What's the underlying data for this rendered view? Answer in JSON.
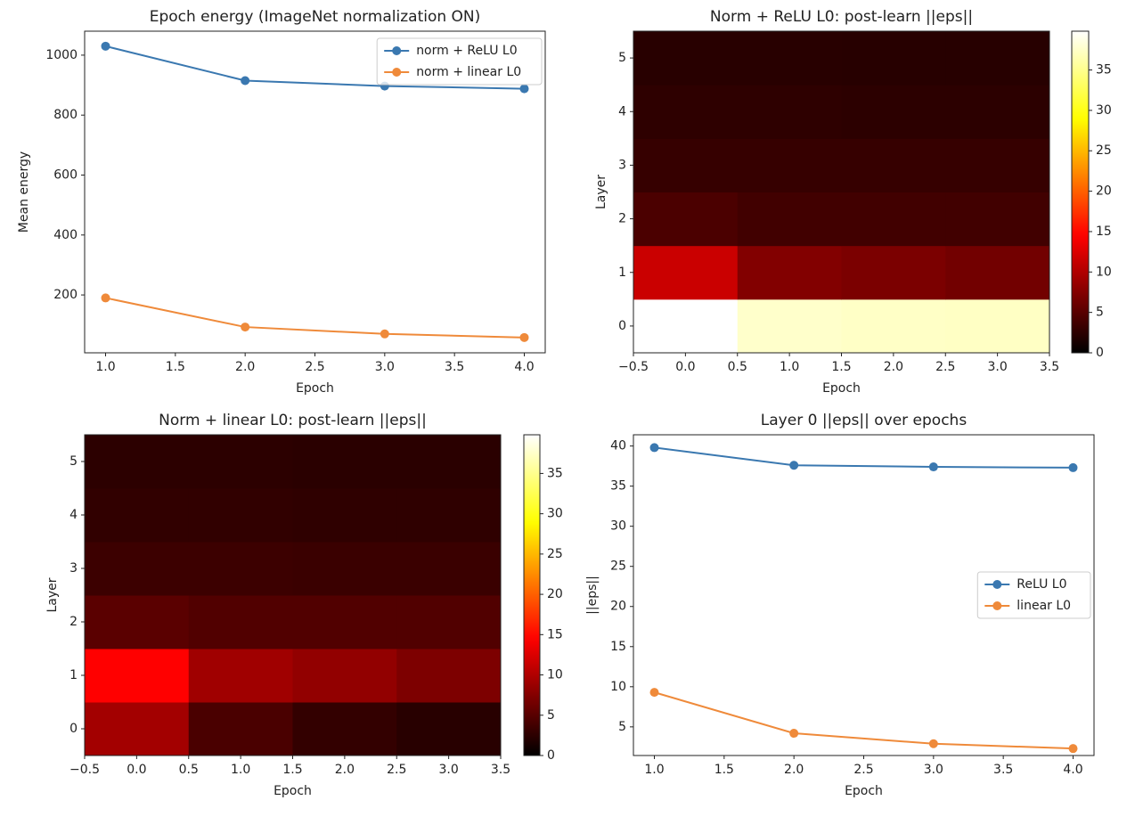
{
  "chart_data": [
    {
      "type": "line",
      "title": "Epoch energy (ImageNet normalization ON)",
      "xlabel": "Epoch",
      "ylabel": "Mean energy",
      "x": [
        1,
        2,
        3,
        4
      ],
      "series": [
        {
          "name": "norm + ReLU L0",
          "color": "#3a78b0",
          "values": [
            1030,
            915,
            897,
            888
          ]
        },
        {
          "name": "norm + linear L0",
          "color": "#ef8a3a",
          "values": [
            190,
            93,
            70,
            58
          ]
        }
      ],
      "xlim": [
        0.85,
        4.15
      ],
      "ylim": [
        7,
        1080
      ],
      "xticks": [
        {
          "value": 1,
          "label": "1.0"
        },
        1.5,
        {
          "value": 2,
          "label": "2.0"
        },
        2.5,
        {
          "value": 3,
          "label": "3.0"
        },
        3.5,
        {
          "value": 4,
          "label": "4.0"
        }
      ],
      "yticks": [
        200,
        400,
        600,
        800,
        1000
      ],
      "legend": "upper right",
      "grid": false
    },
    {
      "type": "heatmap",
      "title": "Norm + ReLU L0: post-learn ||eps||",
      "xlabel": "Epoch",
      "ylabel": "Layer",
      "x": [
        0,
        1,
        2,
        3
      ],
      "y": [
        0,
        1,
        2,
        3,
        4,
        5
      ],
      "values": [
        [
          39.8,
          37.6,
          37.4,
          37.3
        ],
        [
          11.5,
          7.4,
          7,
          6.5
        ],
        [
          4.3,
          3.7,
          3.7,
          3.7
        ],
        [
          3.1,
          3.1,
          3.1,
          3.1
        ],
        [
          2.6,
          2.6,
          2.5,
          2.5
        ],
        [
          2.3,
          2.3,
          2.2,
          2.2
        ]
      ],
      "xlim": [
        -0.5,
        3.5
      ],
      "ylim": [
        -0.5,
        5.5
      ],
      "xticks": [
        {
          "value": -0.5,
          "label": "−0.5"
        },
        {
          "value": 0,
          "label": "0.0"
        },
        0.5,
        {
          "value": 1,
          "label": "1.0"
        },
        1.5,
        {
          "value": 2,
          "label": "2.0"
        },
        2.5,
        {
          "value": 3,
          "label": "3.0"
        },
        3.5
      ],
      "yticks": [
        0,
        1,
        2,
        3,
        4,
        5
      ],
      "colormap": "hot",
      "clim": [
        0,
        39.8
      ],
      "cticks": [
        0,
        5,
        10,
        15,
        20,
        25,
        30,
        35
      ]
    },
    {
      "type": "heatmap",
      "title": "Norm + linear L0: post-learn ||eps||",
      "xlabel": "Epoch",
      "ylabel": "Layer",
      "x": [
        0,
        1,
        2,
        3
      ],
      "y": [
        0,
        1,
        2,
        3,
        4,
        5
      ],
      "values": [
        [
          9.3,
          4.2,
          2.9,
          2.3
        ],
        [
          14.5,
          9.1,
          8.3,
          7.1
        ],
        [
          5.1,
          4.6,
          4.6,
          4.6
        ],
        [
          3.4,
          3.4,
          3.3,
          3.3
        ],
        [
          2.8,
          2.8,
          2.7,
          2.7
        ],
        [
          2.5,
          2.5,
          2.4,
          2.4
        ]
      ],
      "xlim": [
        -0.5,
        3.5
      ],
      "ylim": [
        -0.5,
        5.5
      ],
      "xticks": [
        {
          "value": -0.5,
          "label": "−0.5"
        },
        {
          "value": 0,
          "label": "0.0"
        },
        0.5,
        {
          "value": 1,
          "label": "1.0"
        },
        1.5,
        {
          "value": 2,
          "label": "2.0"
        },
        2.5,
        {
          "value": 3,
          "label": "3.0"
        },
        3.5
      ],
      "yticks": [
        0,
        1,
        2,
        3,
        4,
        5
      ],
      "colormap": "hot",
      "clim": [
        0,
        39.8
      ],
      "cticks": [
        0,
        5,
        10,
        15,
        20,
        25,
        30,
        35
      ]
    },
    {
      "type": "line",
      "title": "Layer 0 ||eps|| over epochs",
      "xlabel": "Epoch",
      "ylabel": "||eps||",
      "x": [
        1,
        2,
        3,
        4
      ],
      "series": [
        {
          "name": "ReLU L0",
          "color": "#3a78b0",
          "values": [
            39.8,
            37.6,
            37.4,
            37.3
          ]
        },
        {
          "name": "linear L0",
          "color": "#ef8a3a",
          "values": [
            9.3,
            4.2,
            2.9,
            2.3
          ]
        }
      ],
      "xlim": [
        0.85,
        4.15
      ],
      "ylim": [
        1.43,
        41.4
      ],
      "xticks": [
        {
          "value": 1,
          "label": "1.0"
        },
        1.5,
        {
          "value": 2,
          "label": "2.0"
        },
        2.5,
        {
          "value": 3,
          "label": "3.0"
        },
        3.5,
        {
          "value": 4,
          "label": "4.0"
        }
      ],
      "yticks": [
        5,
        10,
        15,
        20,
        25,
        30,
        35,
        40
      ],
      "legend": "center right",
      "grid": false
    }
  ]
}
